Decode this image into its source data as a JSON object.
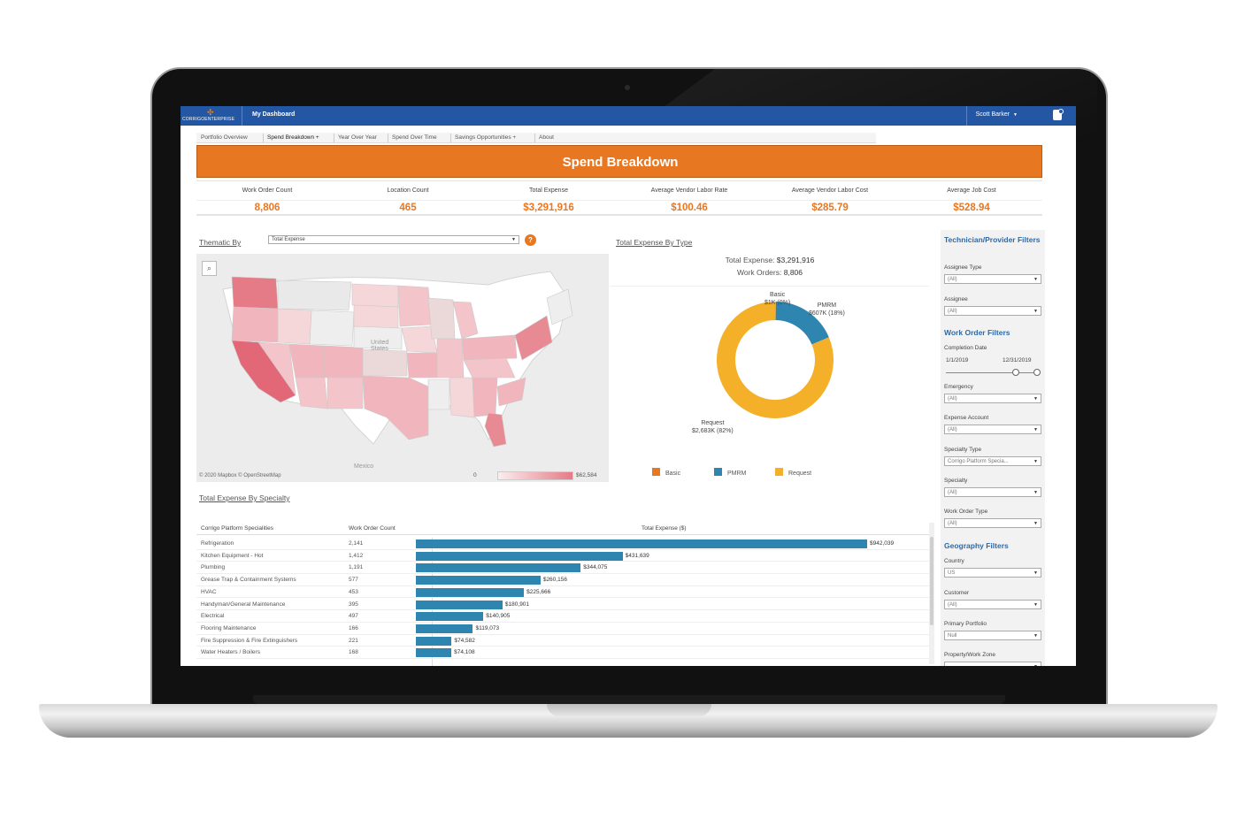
{
  "app": {
    "logo_text": "CORRIGOENTERPRISE",
    "nav_title": "My Dashboard",
    "user_name": "Scott Barker"
  },
  "tabs": [
    {
      "label": "Portfolio Overview"
    },
    {
      "label": "Spend Breakdown +"
    },
    {
      "label": "Year Over Year"
    },
    {
      "label": "Spend Over Time"
    },
    {
      "label": "Savings Opportunities +"
    },
    {
      "label": "About"
    }
  ],
  "banner": {
    "title": "Spend Breakdown"
  },
  "kpis": [
    {
      "label": "Work Order Count",
      "value": "8,806"
    },
    {
      "label": "Location Count",
      "value": "465"
    },
    {
      "label": "Total Expense",
      "value": "$3,291,916"
    },
    {
      "label": "Average Vendor Labor Rate",
      "value": "$100.46"
    },
    {
      "label": "Average Vendor Labor Cost",
      "value": "$285.79"
    },
    {
      "label": "Average Job Cost",
      "value": "$528.94"
    }
  ],
  "thematic": {
    "label": "Thematic By",
    "selected": "Total Expense",
    "help": "?"
  },
  "map": {
    "label_us": "United\nStates",
    "label_mexico": "Mexico",
    "attribution": "© 2020 Mapbox © OpenStreetMap",
    "legend_min": "0",
    "legend_max": "$62,584",
    "colors": {
      "low": "#fbeeee",
      "high": "#e57b87"
    }
  },
  "donut": {
    "title": "Total Expense By Type",
    "summary_expense_label": "Total Expense:",
    "summary_expense_value": "$3,291,916",
    "summary_orders_label": "Work Orders:",
    "summary_orders_value": "8,806",
    "slices": [
      {
        "name": "Basic",
        "label": "Basic\n$1K (0%)",
        "value": 1,
        "color": "#e87722"
      },
      {
        "name": "PMRM",
        "label": "PMRM\n$607K (18%)",
        "value": 607,
        "color": "#2e86b0"
      },
      {
        "name": "Request",
        "label": "Request\n$2,683K (82%)",
        "value": 2683,
        "color": "#f5b02a"
      }
    ],
    "legend": [
      "Basic",
      "PMRM",
      "Request"
    ]
  },
  "specialty": {
    "title": "Total Expense By Specialty",
    "col_specialty": "Corrigo Platform Specialities",
    "col_count": "Work Order Count",
    "col_expense": "Total Expense ($)",
    "rows": [
      {
        "name": "Refrigeration",
        "count": "2,141",
        "value": 942039,
        "value_label": "$942,039"
      },
      {
        "name": "Kitchen Equipment - Hot",
        "count": "1,412",
        "value": 431639,
        "value_label": "$431,639"
      },
      {
        "name": "Plumbing",
        "count": "1,191",
        "value": 344075,
        "value_label": "$344,075"
      },
      {
        "name": "Grease Trap & Containment Systems",
        "count": "577",
        "value": 260156,
        "value_label": "$260,156"
      },
      {
        "name": "HVAC",
        "count": "453",
        "value": 225666,
        "value_label": "$225,666"
      },
      {
        "name": "Handyman/General Maintenance",
        "count": "395",
        "value": 180901,
        "value_label": "$180,901"
      },
      {
        "name": "Electrical",
        "count": "497",
        "value": 140905,
        "value_label": "$140,905"
      },
      {
        "name": "Flooring Maintenance",
        "count": "166",
        "value": 119073,
        "value_label": "$119,073"
      },
      {
        "name": "Fire Suppression & Fire Extinguishers",
        "count": "221",
        "value": 74582,
        "value_label": "$74,582"
      },
      {
        "name": "Water Heaters / Boilers",
        "count": "168",
        "value": 74108,
        "value_label": "$74,108"
      }
    ],
    "bar_color": "#2e86b0",
    "max_value": 942039
  },
  "filters": {
    "tech_head": "Technician/Provider Filters",
    "assignee_type_label": "Assignee Type",
    "assignee_type_value": "(All)",
    "assignee_label": "Assignee",
    "assignee_value": "(All)",
    "wo_head": "Work Order Filters",
    "completion_label": "Completion Date",
    "date_start": "1/1/2019",
    "date_end": "12/31/2019",
    "emergency_label": "Emergency",
    "emergency_value": "(All)",
    "expense_account_label": "Expense Account",
    "expense_account_value": "(All)",
    "specialty_type_label": "Specialty Type",
    "specialty_type_value": "Corrigo Platform Specia...",
    "specialty_label": "Specialty",
    "specialty_value": "(All)",
    "wo_type_label": "Work Order Type",
    "wo_type_value": "(All)",
    "geo_head": "Geography Filters",
    "country_label": "Country",
    "country_value": "US",
    "customer_label": "Customer",
    "customer_value": "(All)",
    "portfolio_label": "Primary Portfolio",
    "portfolio_value": "Null",
    "zone_label": "Property/Work Zone"
  }
}
